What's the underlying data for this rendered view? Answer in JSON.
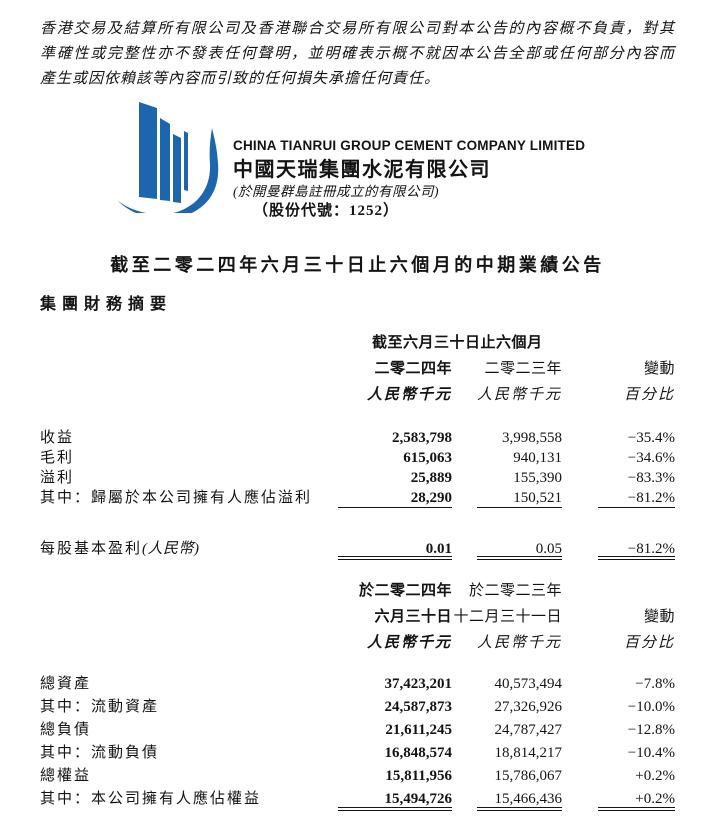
{
  "brand": {
    "logo_color": "#1c66ae"
  },
  "disclaimer": {
    "lines": [
      "香港交易及結算所有限公司及香港聯合交易所有限公司對本公告的內容概不負責，對其",
      "準確性或完整性亦不發表任何聲明，並明確表示概不就因本公告全部或任何部分內容而",
      "產生或因依賴該等內容而引致的任何損失承擔任何責任。"
    ]
  },
  "company": {
    "name_en": "CHINA TIANRUI GROUP CEMENT COMPANY LIMITED",
    "name_zh": "中國天瑞集團水泥有限公司",
    "incorporation_note": "(於開曼群島註冊成立的有限公司)",
    "stock_code_line": "（股份代號：1252）"
  },
  "announcement": {
    "title": "截至二零二四年六月三十日止六個月的中期業績公告",
    "section_heading": "集團財務摘要"
  },
  "income_table": {
    "period_header": "截至六月三十日止六個月",
    "columns": {
      "col1": "二零二四年",
      "col2": "二零二三年",
      "col3": "變動"
    },
    "units": {
      "col1": "人民幣千元",
      "col2": "人民幣千元",
      "col3": "百分比"
    },
    "rows": [
      {
        "label": "收益",
        "v2024": "2,583,798",
        "v2023": "3,998,558",
        "change": "−35.4%",
        "rule": "none"
      },
      {
        "label": "毛利",
        "v2024": "615,063",
        "v2023": "940,131",
        "change": "−34.6%",
        "rule": "none"
      },
      {
        "label": "溢利",
        "v2024": "25,889",
        "v2023": "155,390",
        "change": "−83.3%",
        "rule": "none"
      },
      {
        "label": "其中：歸屬於本公司擁有人應佔溢利",
        "v2024": "28,290",
        "v2023": "150,521",
        "change": "−81.2%",
        "rule": "single"
      }
    ],
    "eps_row": {
      "label": "每股基本盈利",
      "label_suffix": "(人民幣)",
      "v2024": "0.01",
      "v2023": "0.05",
      "change": "−81.2%"
    }
  },
  "balance_table": {
    "columns_line1": {
      "col1": "於二零二四年",
      "col2": "於二零二三年"
    },
    "columns_line2": {
      "col1": "六月三十日",
      "col2": "十二月三十一日",
      "col3": "變動"
    },
    "units": {
      "col1": "人民幣千元",
      "col2": "人民幣千元",
      "col3": "百分比"
    },
    "rows": [
      {
        "label": "總資產",
        "v1": "37,423,201",
        "v2": "40,573,494",
        "change": "−7.8%",
        "rule": "none"
      },
      {
        "label": "其中：流動資產",
        "v1": "24,587,873",
        "v2": "27,326,926",
        "change": "−10.0%",
        "rule": "none"
      },
      {
        "label": "總負債",
        "v1": "21,611,245",
        "v2": "24,787,427",
        "change": "−12.8%",
        "rule": "none"
      },
      {
        "label": "其中：流動負債",
        "v1": "16,848,574",
        "v2": "18,814,217",
        "change": "−10.4%",
        "rule": "none"
      },
      {
        "label": "總權益",
        "v1": "15,811,956",
        "v2": "15,786,067",
        "change": "+0.2%",
        "rule": "none"
      },
      {
        "label": "其中：本公司擁有人應佔權益",
        "v1": "15,494,726",
        "v2": "15,466,436",
        "change": "+0.2%",
        "rule": "double"
      }
    ]
  }
}
